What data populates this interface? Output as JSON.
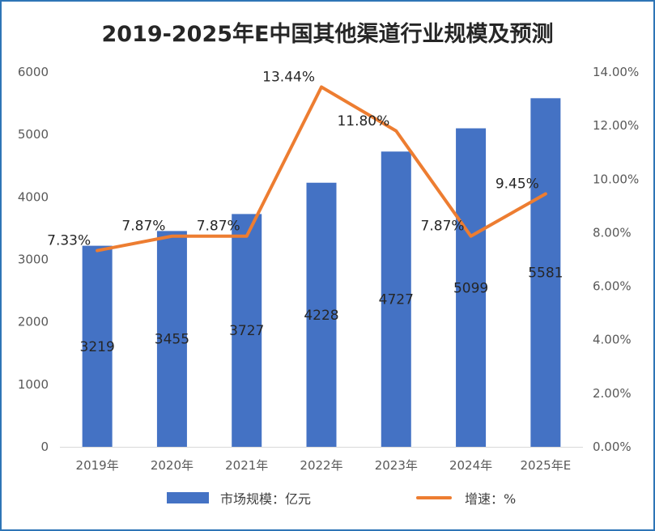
{
  "chart_data": {
    "type": "bar+line",
    "title": "2019-2025年E中国其他渠道行业规模及预测",
    "categories": [
      "2019年",
      "2020年",
      "2021年",
      "2022年",
      "2023年",
      "2024年",
      "2025年E"
    ],
    "series": [
      {
        "name": "市场规模：亿元",
        "type": "bar",
        "axis": "left",
        "color": "#4472c4",
        "values": [
          3219,
          3455,
          3727,
          4228,
          4727,
          5099,
          5581
        ],
        "labels": [
          "3219",
          "3455",
          "3727",
          "4228",
          "4727",
          "5099",
          "5581"
        ]
      },
      {
        "name": "增速：%",
        "type": "line",
        "axis": "right",
        "color": "#ed7d31",
        "values": [
          7.33,
          7.87,
          7.87,
          13.44,
          11.8,
          7.87,
          9.45
        ],
        "labels": [
          "7.33%",
          "7.87%",
          "7.87%",
          "13.44%",
          "11.80%",
          "7.87%",
          "9.45%"
        ]
      }
    ],
    "y_left": {
      "range": [
        0,
        6000
      ],
      "ticks": [
        0,
        1000,
        2000,
        3000,
        4000,
        5000,
        6000
      ],
      "tick_labels": [
        "0",
        "1000",
        "2000",
        "3000",
        "4000",
        "5000",
        "6000"
      ]
    },
    "y_right": {
      "range": [
        0,
        14
      ],
      "ticks": [
        0,
        2,
        4,
        6,
        8,
        10,
        12,
        14
      ],
      "tick_labels": [
        "0.00%",
        "2.00%",
        "4.00%",
        "6.00%",
        "8.00%",
        "10.00%",
        "12.00%",
        "14.00%"
      ]
    },
    "grid": false,
    "legend_position": "bottom"
  }
}
